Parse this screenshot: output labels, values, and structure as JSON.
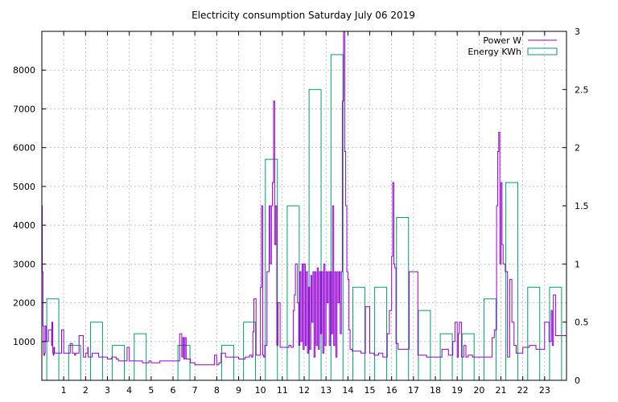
{
  "chart_data": {
    "type": "bar+line",
    "title": "Electricity consumption Saturday July 06 2019",
    "xlabel": "",
    "ylabel": "",
    "y2label": "",
    "xlim": [
      0,
      24
    ],
    "ylim": [
      0,
      9000
    ],
    "y2lim": [
      0,
      3
    ],
    "grid": true,
    "legend_position": "top-right",
    "x_ticks": [
      1,
      2,
      3,
      4,
      5,
      6,
      7,
      8,
      9,
      10,
      11,
      12,
      13,
      14,
      15,
      16,
      17,
      18,
      19,
      20,
      21,
      22,
      23
    ],
    "y_ticks": [
      1000,
      2000,
      3000,
      4000,
      5000,
      6000,
      7000,
      8000
    ],
    "y2_ticks": [
      0,
      0.5,
      1,
      1.5,
      2,
      2.5,
      3
    ],
    "y2_tick_labels": [
      "0",
      "0.5",
      "1",
      "1.5",
      "2",
      "2.5",
      "3"
    ],
    "colors": {
      "power": "#9400d3",
      "energy": "#009e73",
      "grid": "#a0a0a0"
    },
    "series": [
      {
        "name": "Power W",
        "kind": "line",
        "axis": "y",
        "x": [
          0.0,
          0.02,
          0.05,
          0.08,
          0.1,
          0.13,
          0.15,
          0.2,
          0.3,
          0.45,
          0.46,
          0.5,
          0.52,
          0.55,
          0.58,
          0.6,
          0.7,
          0.9,
          1.0,
          1.2,
          1.3,
          1.4,
          1.5,
          1.55,
          1.7,
          1.9,
          2.0,
          2.1,
          2.12,
          2.15,
          2.3,
          2.6,
          2.9,
          3.0,
          3.2,
          3.4,
          3.5,
          3.7,
          3.9,
          4.0,
          4.05,
          4.1,
          4.15,
          4.3,
          4.6,
          4.9,
          5.0,
          5.4,
          5.8,
          6.0,
          6.3,
          6.4,
          6.45,
          6.5,
          6.55,
          6.6,
          6.7,
          6.8,
          6.9,
          7.0,
          7.3,
          7.7,
          7.9,
          8.0,
          8.1,
          8.2,
          8.4,
          8.7,
          9.0,
          9.3,
          9.5,
          9.6,
          9.65,
          9.7,
          9.8,
          9.9,
          10.0,
          10.05,
          10.1,
          10.15,
          10.2,
          10.3,
          10.4,
          10.45,
          10.5,
          10.55,
          10.6,
          10.65,
          10.7,
          10.75,
          10.8,
          10.9,
          11.0,
          11.3,
          11.4,
          11.5,
          11.55,
          11.6,
          11.7,
          11.75,
          11.8,
          11.85,
          11.9,
          11.95,
          12.0,
          12.05,
          12.1,
          12.15,
          12.2,
          12.25,
          12.3,
          12.35,
          12.4,
          12.45,
          12.5,
          12.55,
          12.6,
          12.65,
          12.7,
          12.75,
          12.8,
          12.85,
          12.9,
          12.95,
          13.0,
          13.05,
          13.1,
          13.15,
          13.2,
          13.25,
          13.3,
          13.35,
          13.4,
          13.45,
          13.5,
          13.55,
          13.6,
          13.65,
          13.7,
          13.75,
          13.8,
          13.85,
          13.9,
          13.95,
          14.0,
          14.05,
          14.1,
          14.2,
          14.4,
          14.6,
          14.8,
          15.0,
          15.2,
          15.4,
          15.6,
          15.8,
          15.9,
          16.0,
          16.05,
          16.1,
          16.15,
          16.2,
          16.3,
          16.6,
          16.8,
          17.0,
          17.2,
          17.4,
          17.6,
          18.0,
          18.3,
          18.6,
          18.8,
          18.9,
          19.0,
          19.05,
          19.1,
          19.2,
          19.3,
          19.4,
          19.5,
          19.7,
          20.0,
          20.3,
          20.6,
          20.7,
          20.8,
          20.85,
          20.9,
          20.95,
          21.0,
          21.05,
          21.1,
          21.15,
          21.2,
          21.3,
          21.4,
          21.5,
          21.6,
          21.7,
          21.8,
          21.9,
          22.0,
          22.3,
          22.6,
          22.9,
          23.0,
          23.2,
          23.3,
          23.35,
          23.4,
          23.5,
          23.6,
          24.0
        ],
        "values": [
          4500,
          2800,
          1400,
          650,
          650,
          700,
          1400,
          1000,
          1300,
          900,
          1500,
          700,
          650,
          850,
          700,
          700,
          700,
          1300,
          700,
          700,
          950,
          700,
          650,
          700,
          1150,
          600,
          700,
          850,
          600,
          600,
          700,
          600,
          600,
          550,
          600,
          550,
          500,
          500,
          850,
          500,
          500,
          500,
          500,
          500,
          450,
          500,
          450,
          500,
          500,
          500,
          1200,
          600,
          1100,
          550,
          1100,
          550,
          550,
          450,
          450,
          400,
          400,
          400,
          650,
          400,
          450,
          700,
          600,
          600,
          550,
          600,
          650,
          600,
          1250,
          2100,
          650,
          650,
          2400,
          4500,
          650,
          600,
          900,
          2800,
          4500,
          3000,
          4500,
          5100,
          7200,
          3500,
          4500,
          900,
          2000,
          850,
          850,
          900,
          850,
          1800,
          2200,
          3000,
          2000,
          900,
          2800,
          1000,
          3000,
          800,
          3000,
          900,
          2800,
          700,
          2400,
          800,
          2700,
          1500,
          2800,
          600,
          2800,
          900,
          2900,
          800,
          2800,
          1200,
          2800,
          700,
          3000,
          900,
          2800,
          2000,
          2800,
          900,
          2800,
          1200,
          4500,
          900,
          2800,
          600,
          2800,
          2000,
          2800,
          1200,
          2800,
          7200,
          9200,
          5900,
          4500,
          2800,
          2600,
          1300,
          800,
          750,
          750,
          700,
          1900,
          700,
          650,
          700,
          600,
          1200,
          1800,
          3200,
          5100,
          3000,
          2900,
          950,
          800,
          800,
          2800,
          2800,
          650,
          650,
          600,
          600,
          800,
          650,
          1000,
          1500,
          600,
          1200,
          1500,
          600,
          900,
          600,
          650,
          600,
          600,
          600,
          1100,
          1300,
          4500,
          5900,
          6400,
          3000,
          5100,
          3500,
          3000,
          3000,
          2800,
          600,
          2600,
          1500,
          900,
          700,
          700,
          700,
          850,
          900,
          800,
          800,
          1500,
          1000,
          1800,
          900,
          2200,
          1150,
          1150,
          1200
        ]
      },
      {
        "name": "Energy KWh",
        "kind": "bar",
        "axis": "y2",
        "categories": [
          0,
          1,
          2,
          3,
          4,
          5,
          6,
          7,
          8,
          9,
          10,
          11,
          12,
          13,
          14,
          15,
          16,
          17,
          18,
          19,
          20,
          21,
          22,
          23
        ],
        "values": [
          0.7,
          0.3,
          0.5,
          0.3,
          0.4,
          0,
          0.3,
          0,
          0.3,
          0.5,
          1.9,
          1.5,
          2.5,
          2.8,
          0.8,
          0.8,
          1.4,
          0.6,
          0.4,
          0.4,
          0.7,
          1.7,
          0.8,
          0.8
        ]
      }
    ]
  }
}
